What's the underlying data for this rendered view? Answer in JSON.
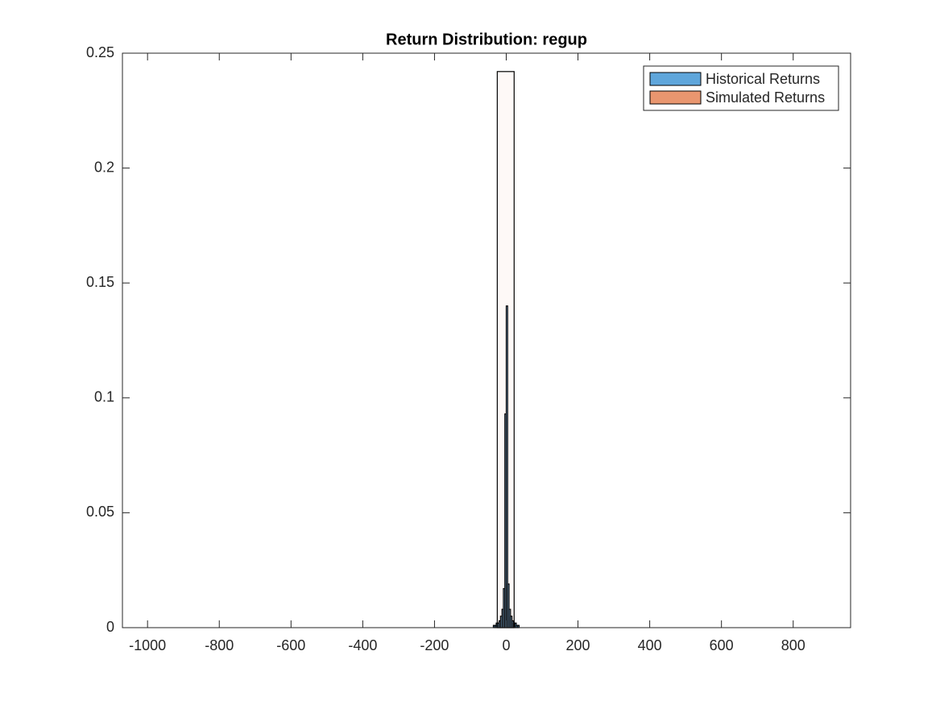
{
  "chart_data": {
    "type": "histogram",
    "title": "Return Distribution: regup",
    "series": [
      {
        "name": "Historical Returns",
        "color": "#5fa6db",
        "bins": [
          -40,
          -36,
          -32,
          -28,
          -24,
          -20,
          -16,
          -12,
          -8,
          -4,
          0,
          4,
          8,
          12,
          16,
          20,
          24,
          28,
          32,
          36,
          40
        ],
        "values": [
          0,
          0.001,
          0.001,
          0.002,
          0.002,
          0.003,
          0.005,
          0.008,
          0.017,
          0.093,
          0.14,
          0.019,
          0.008,
          0.005,
          0.003,
          0.002,
          0.002,
          0.001,
          0.001,
          0
        ]
      },
      {
        "name": "Simulated Returns",
        "color": "#e9966f",
        "bins": [
          -25,
          22
        ],
        "values": [
          0.242
        ]
      }
    ],
    "xlim": [
      -1070,
      960
    ],
    "xticks": [
      -1000,
      -800,
      -600,
      -400,
      -200,
      0,
      200,
      400,
      600,
      800
    ],
    "ylim": [
      0,
      0.25
    ],
    "yticks": [
      0,
      0.05,
      0.1,
      0.15,
      0.2,
      0.25
    ],
    "legend": "top-right"
  }
}
